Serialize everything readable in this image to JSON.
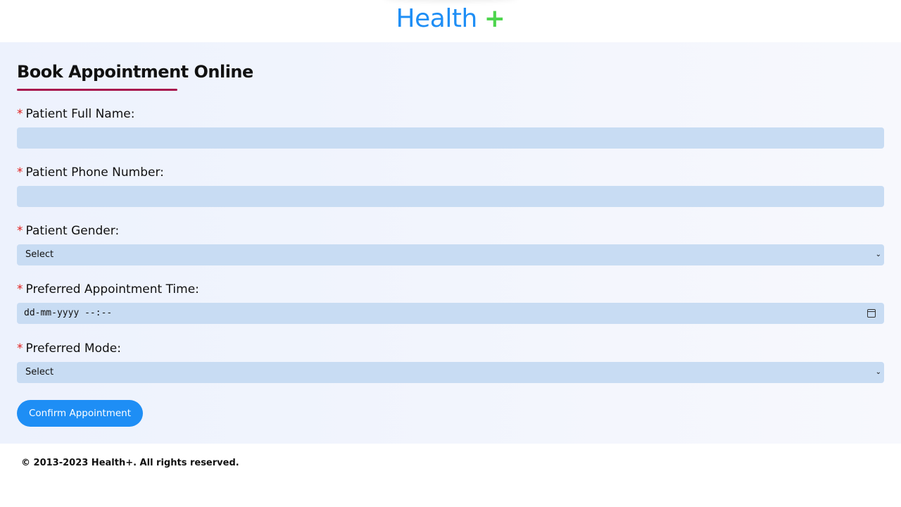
{
  "header": {
    "logo_text": "Health",
    "logo_plus": "+"
  },
  "form": {
    "title": "Book Appointment Online",
    "required_marker": "*",
    "fields": [
      {
        "label": "Patient Full Name:",
        "value": ""
      },
      {
        "label": "Patient Phone Number:",
        "value": ""
      },
      {
        "label": "Patient Gender:",
        "value": "Select"
      },
      {
        "label": "Preferred Appointment Time:",
        "value": "dd-mm-yyyy --:--"
      },
      {
        "label": "Preferred Mode:",
        "value": "Select"
      }
    ],
    "submit_label": "Confirm Appointment"
  },
  "footer": {
    "copyright": "© 2013-2023 Health+. All rights reserved."
  },
  "colors": {
    "brand_blue": "#1e8ef5",
    "brand_green": "#4ed54e",
    "underline": "#a8194f",
    "input_bg": "#c8dcf3",
    "required": "#e0201e"
  }
}
